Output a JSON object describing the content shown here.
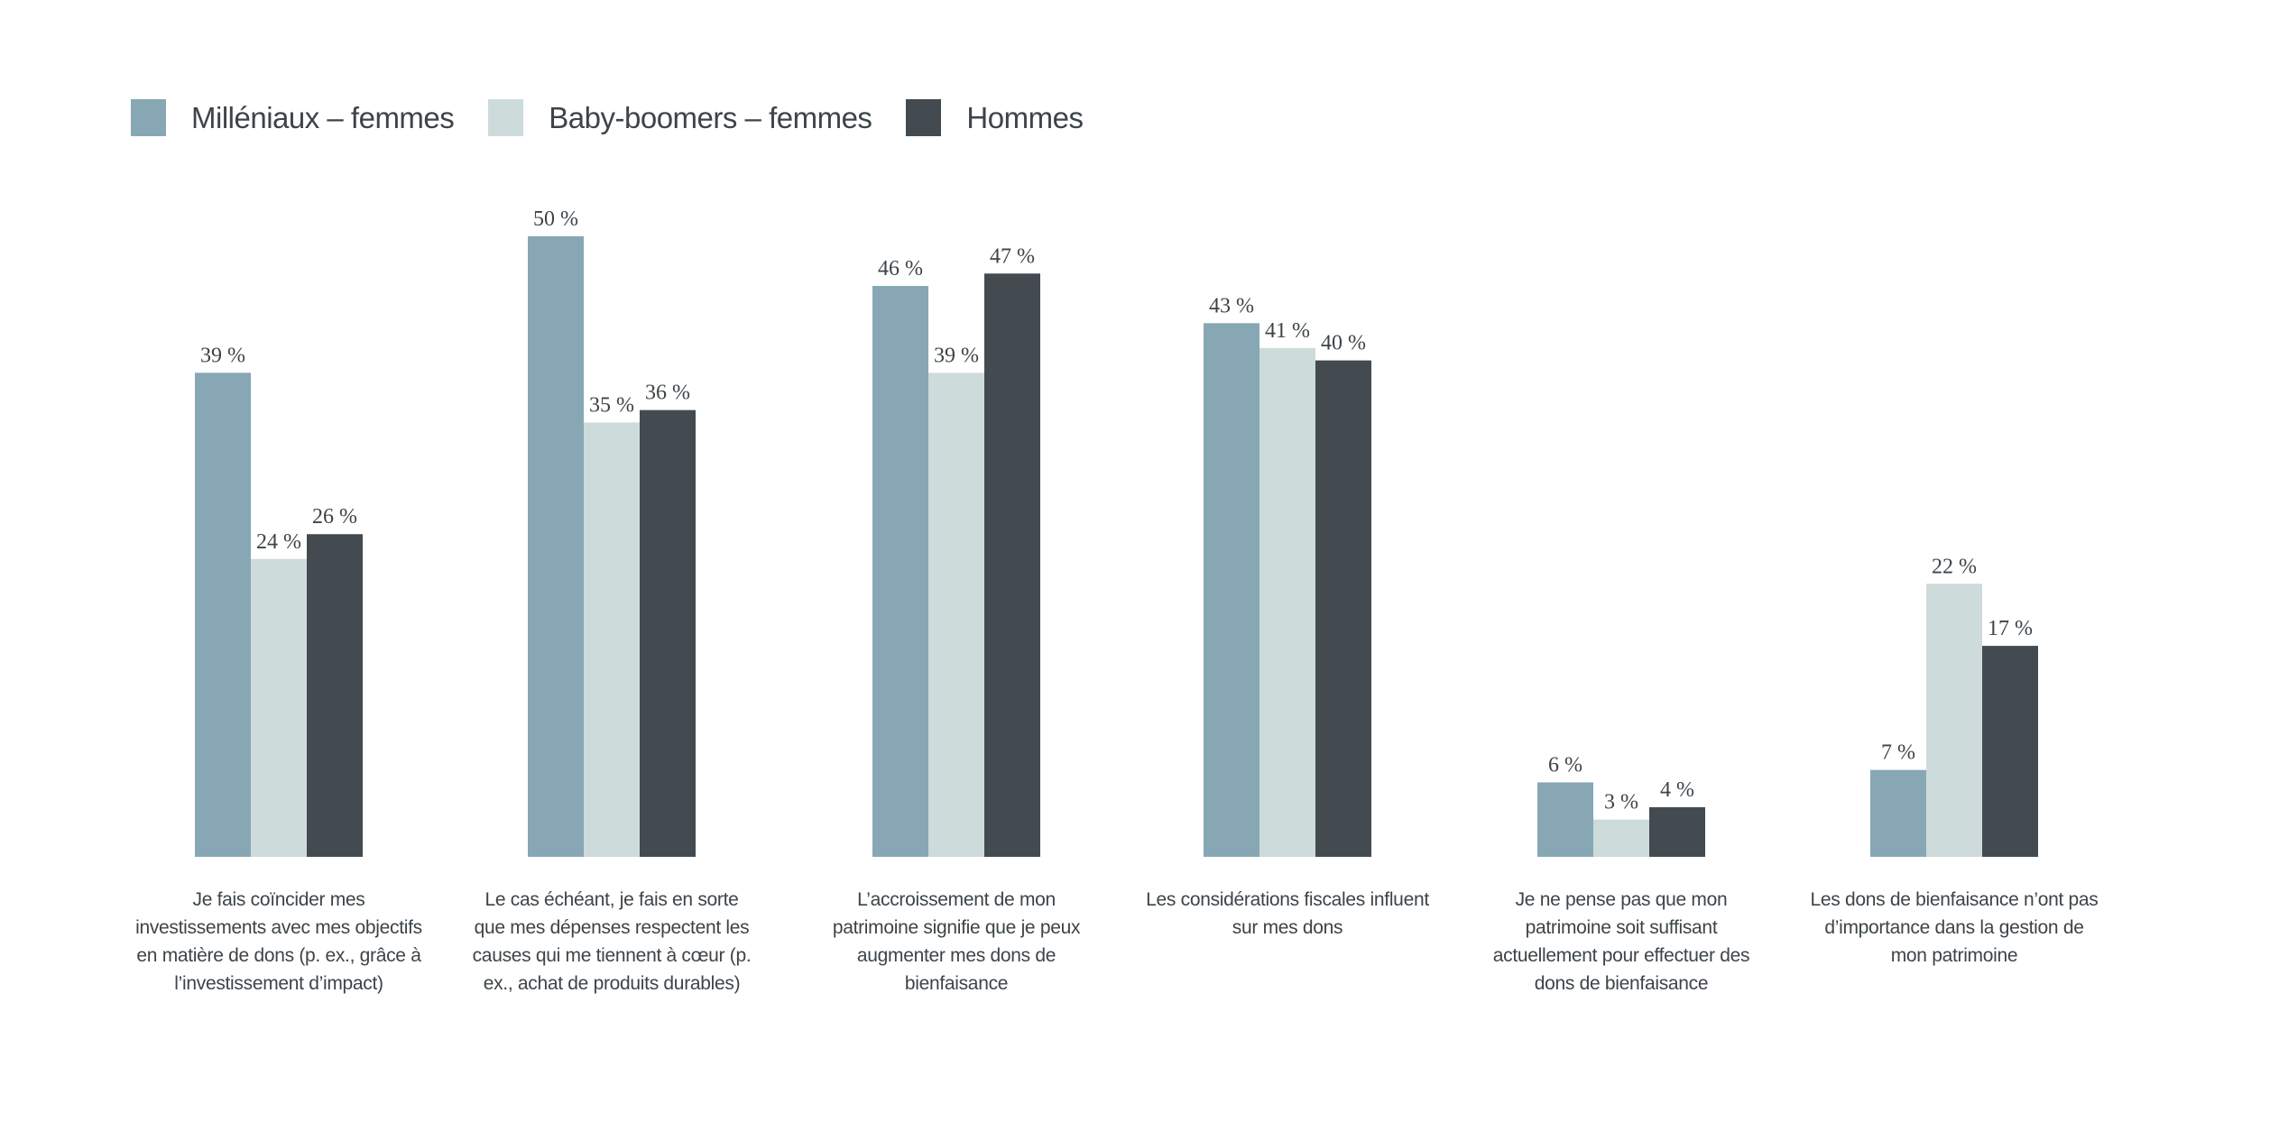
{
  "chart_data": {
    "type": "bar",
    "title": "",
    "xlabel": "",
    "ylabel": "",
    "ylim": [
      0,
      50
    ],
    "grid": false,
    "legend_position": "top-left",
    "value_suffix": " %",
    "categories": [
      "Je fais coïncider mes investissements avec mes objectifs en matière de dons (p. ex., grâce à l’investissement d’impact)",
      "Le cas échéant, je fais en sorte que mes dépenses respectent les causes qui me tiennent à cœur (p. ex., achat de produits durables)",
      "L’accroissement de mon patrimoine signifie que je peux augmenter mes dons de bienfaisance",
      "Les considérations fiscales influent sur mes dons",
      "Je ne pense pas que mon patrimoine soit suffisant actuellement pour effectuer des dons de bienfaisance",
      "Les dons de bienfaisance n’ont pas d’importance dans la gestion de mon patrimoine"
    ],
    "series": [
      {
        "name": "Milléniaux – femmes",
        "color": "#87a7b5",
        "values": [
          39,
          50,
          46,
          43,
          6,
          7
        ]
      },
      {
        "name": "Baby-boomers – femmes",
        "color": "#cddbdb",
        "values": [
          24,
          35,
          39,
          41,
          3,
          22
        ]
      },
      {
        "name": "Hommes",
        "color": "#434b51",
        "values": [
          26,
          36,
          47,
          40,
          4,
          17
        ]
      }
    ]
  }
}
